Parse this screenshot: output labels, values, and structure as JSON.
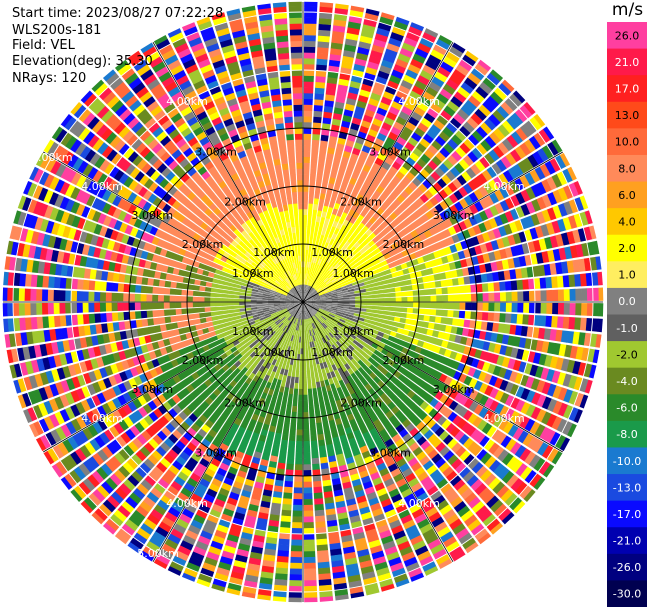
{
  "info": {
    "start_time": "Start time: 2023/08/27 07:22:28",
    "instrument": "WLS200s-181",
    "field": "Field: VEL",
    "elevation": "Elevation(deg): 35.30",
    "nrays": "NRays: 120"
  },
  "colorbar": {
    "title": "m/s",
    "ticks": [
      "26.0",
      "21.0",
      "17.0",
      "13.0",
      "10.0",
      "8.0",
      "6.0",
      "4.0",
      "2.0",
      "1.0",
      "0.0",
      "-1.0",
      "-2.0",
      "-4.0",
      "-6.0",
      "-8.0",
      "-10.0",
      "-13.0",
      "-17.0",
      "-21.0",
      "-26.0",
      "-30.0"
    ],
    "colors": [
      "#ff3fa0",
      "#ff1a4a",
      "#ff2020",
      "#ff4a1a",
      "#ff6a3a",
      "#ff8a5a",
      "#ffa020",
      "#ffc800",
      "#ffff00",
      "#ffee60",
      "#808080",
      "#606060",
      "#a0c830",
      "#6a8a20",
      "#2a8a2a",
      "#1a9a4a",
      "#1a7ad0",
      "#1a4ae0",
      "#0a0aff",
      "#0000b0",
      "#000080",
      "#000050"
    ]
  },
  "chart_data": {
    "type": "ppi",
    "field": "VEL",
    "units": "m/s",
    "rays": 120,
    "range_labels": [
      "1.00km",
      "2.00km",
      "3.00km",
      "4.00km",
      "5.00km"
    ],
    "range_rings_km": [
      1,
      2,
      3,
      4,
      5
    ],
    "valid_data_max_range_km": 2.8,
    "velocity_regions": [
      {
        "sector": "north",
        "range_km": [
          0.3,
          1.5
        ],
        "value": 2.0
      },
      {
        "sector": "north",
        "range_km": [
          1.5,
          2.8
        ],
        "value": 8.0
      },
      {
        "sector": "east-west near center",
        "range_km": [
          0.0,
          1.0
        ],
        "value": 0.0
      },
      {
        "sector": "south",
        "range_km": [
          0.3,
          1.5
        ],
        "value": -2.0
      },
      {
        "sector": "south",
        "range_km": [
          1.5,
          2.6
        ],
        "value": -6.0
      },
      {
        "sector": "south (far)",
        "range_km": [
          2.4,
          2.8
        ],
        "value": -8.0
      }
    ],
    "noise_beyond_km": 2.8
  }
}
